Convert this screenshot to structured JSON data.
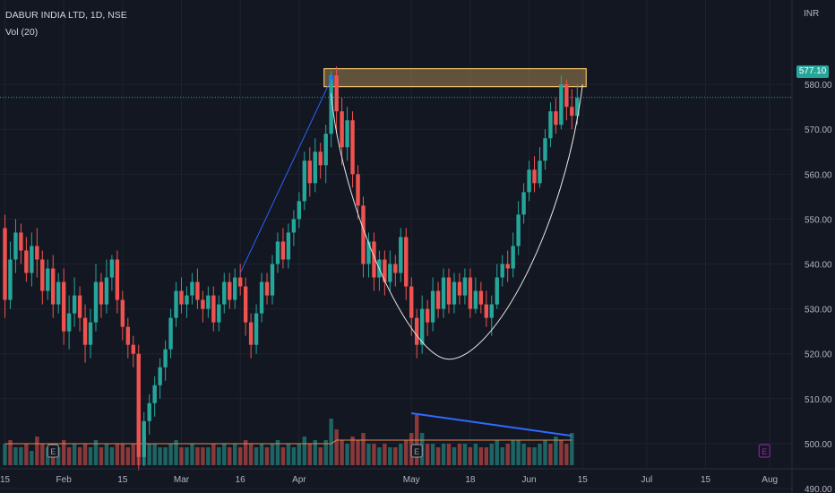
{
  "header": {
    "title": "DABUR INDIA LTD, 1D, NSE",
    "volume_label": "Vol (20)"
  },
  "price_axis": {
    "currency_label": "INR",
    "last_price": "577.10"
  },
  "colors": {
    "background": "#131722",
    "up": "#26a69a",
    "down": "#ef5350",
    "volume_ma": "#e08a4f",
    "trend_arrow": "#2962ff",
    "volume_trendline": "#2f6bff",
    "resistance_zone": "#f2c06b",
    "cup_curve": "#e6e6e6",
    "earnings_marker": "#9c27b0"
  },
  "chart_data": {
    "type": "candlestick",
    "title": "DABUR INDIA LTD, 1D, NSE",
    "ylim": [
      487,
      596
    ],
    "y_ticks": [
      490,
      500,
      510,
      520,
      530,
      540,
      550,
      560,
      570,
      580
    ],
    "x_ticks": [
      {
        "label": "15",
        "i": 0
      },
      {
        "label": "Feb",
        "i": 11
      },
      {
        "label": "15",
        "i": 22
      },
      {
        "label": "Mar",
        "i": 33
      },
      {
        "label": "16",
        "i": 44
      },
      {
        "label": "Apr",
        "i": 55
      },
      {
        "label": "May",
        "i": 76
      },
      {
        "label": "18",
        "i": 87
      },
      {
        "label": "Jun",
        "i": 98
      },
      {
        "label": "15",
        "i": 108
      },
      {
        "label": "Jul",
        "i": 120
      },
      {
        "label": "15",
        "i": 131
      },
      {
        "label": "Aug",
        "i": 143
      }
    ],
    "candles": [
      [
        548,
        532,
        551,
        528
      ],
      [
        532,
        541,
        545,
        530
      ],
      [
        541,
        547,
        550,
        538
      ],
      [
        547,
        543,
        549,
        540
      ],
      [
        543,
        538,
        546,
        536
      ],
      [
        538,
        544,
        547,
        535
      ],
      [
        544,
        541,
        548,
        537
      ],
      [
        541,
        534,
        543,
        531
      ],
      [
        534,
        539,
        541,
        532
      ],
      [
        539,
        531,
        542,
        528
      ],
      [
        531,
        536,
        538,
        529
      ],
      [
        536,
        525,
        539,
        522
      ],
      [
        525,
        529,
        533,
        521
      ],
      [
        529,
        533,
        537,
        526
      ],
      [
        533,
        528,
        535,
        525
      ],
      [
        528,
        522,
        531,
        518
      ],
      [
        522,
        527,
        530,
        519
      ],
      [
        527,
        536,
        540,
        525
      ],
      [
        536,
        531,
        538,
        528
      ],
      [
        531,
        537,
        541,
        529
      ],
      [
        537,
        541,
        542,
        534
      ],
      [
        541,
        532,
        543,
        529
      ],
      [
        532,
        526,
        534,
        523
      ],
      [
        526,
        522,
        528,
        519
      ],
      [
        522,
        520,
        524,
        517
      ],
      [
        520,
        497,
        522,
        494
      ],
      [
        497,
        505,
        507,
        495
      ],
      [
        505,
        509,
        511,
        502
      ],
      [
        509,
        513,
        515,
        506
      ],
      [
        513,
        517,
        519,
        510
      ],
      [
        517,
        521,
        523,
        514
      ],
      [
        521,
        528,
        530,
        519
      ],
      [
        528,
        534,
        536,
        526
      ],
      [
        534,
        531,
        537,
        529
      ],
      [
        531,
        533,
        535,
        528
      ],
      [
        533,
        536,
        538,
        531
      ],
      [
        536,
        532,
        539,
        530
      ],
      [
        532,
        530,
        534,
        527
      ],
      [
        530,
        533,
        535,
        528
      ],
      [
        533,
        527,
        535,
        525
      ],
      [
        527,
        531,
        533,
        525
      ],
      [
        531,
        536,
        538,
        529
      ],
      [
        536,
        532,
        538,
        530
      ],
      [
        532,
        537,
        539,
        530
      ],
      [
        537,
        535,
        540,
        533
      ],
      [
        535,
        527,
        537,
        524
      ],
      [
        527,
        522,
        529,
        519
      ],
      [
        522,
        529,
        531,
        520
      ],
      [
        529,
        536,
        538,
        527
      ],
      [
        536,
        533,
        538,
        531
      ],
      [
        533,
        540,
        542,
        531
      ],
      [
        540,
        545,
        547,
        538
      ],
      [
        545,
        541,
        548,
        539
      ],
      [
        541,
        547,
        549,
        539
      ],
      [
        547,
        550,
        552,
        544
      ],
      [
        550,
        554,
        556,
        548
      ],
      [
        554,
        563,
        565,
        552
      ],
      [
        563,
        558,
        566,
        555
      ],
      [
        558,
        565,
        568,
        556
      ],
      [
        565,
        562,
        567,
        559
      ],
      [
        562,
        569,
        571,
        558
      ],
      [
        569,
        582,
        583,
        566
      ],
      [
        582,
        574,
        584,
        569
      ],
      [
        574,
        566,
        577,
        562
      ],
      [
        566,
        572,
        575,
        563
      ],
      [
        572,
        560,
        574,
        557
      ],
      [
        560,
        553,
        562,
        550
      ],
      [
        553,
        540,
        555,
        537
      ],
      [
        540,
        545,
        547,
        537
      ],
      [
        545,
        537,
        547,
        534
      ],
      [
        537,
        541,
        543,
        534
      ],
      [
        541,
        536,
        543,
        533
      ],
      [
        536,
        540,
        543,
        534
      ],
      [
        540,
        538,
        542,
        535
      ],
      [
        538,
        546,
        548,
        536
      ],
      [
        546,
        535,
        548,
        532
      ],
      [
        535,
        528,
        537,
        524
      ],
      [
        528,
        522,
        530,
        519
      ],
      [
        522,
        530,
        533,
        520
      ],
      [
        530,
        527,
        532,
        524
      ],
      [
        527,
        534,
        537,
        525
      ],
      [
        534,
        530,
        536,
        528
      ],
      [
        530,
        537,
        539,
        528
      ],
      [
        537,
        531,
        539,
        529
      ],
      [
        531,
        536,
        538,
        529
      ],
      [
        536,
        533,
        538,
        531
      ],
      [
        533,
        537,
        539,
        531
      ],
      [
        537,
        530,
        539,
        528
      ],
      [
        530,
        534,
        537,
        529
      ],
      [
        534,
        531,
        536,
        529
      ],
      [
        531,
        528,
        534,
        526
      ],
      [
        528,
        531,
        533,
        524
      ],
      [
        531,
        537,
        540,
        530
      ],
      [
        537,
        540,
        542,
        535
      ],
      [
        540,
        539,
        543,
        536
      ],
      [
        539,
        544,
        547,
        537
      ],
      [
        544,
        551,
        554,
        542
      ],
      [
        551,
        556,
        558,
        549
      ],
      [
        556,
        561,
        563,
        554
      ],
      [
        561,
        558,
        564,
        556
      ],
      [
        558,
        563,
        566,
        557
      ],
      [
        563,
        568,
        570,
        561
      ],
      [
        568,
        574,
        576,
        566
      ],
      [
        574,
        571,
        577,
        569
      ],
      [
        571,
        580,
        582,
        570
      ],
      [
        580,
        575,
        581,
        572
      ],
      [
        575,
        573,
        579,
        570
      ],
      [
        573,
        577,
        580,
        571
      ]
    ],
    "volume": [
      [
        6,
        1
      ],
      [
        7,
        0
      ],
      [
        5,
        1
      ],
      [
        5,
        1
      ],
      [
        6,
        0
      ],
      [
        4,
        1
      ],
      [
        8,
        0
      ],
      [
        6,
        0
      ],
      [
        5,
        1
      ],
      [
        6,
        0
      ],
      [
        5,
        1
      ],
      [
        7,
        0
      ],
      [
        5,
        0
      ],
      [
        6,
        1
      ],
      [
        5,
        0
      ],
      [
        6,
        0
      ],
      [
        5,
        1
      ],
      [
        7,
        1
      ],
      [
        5,
        0
      ],
      [
        6,
        1
      ],
      [
        5,
        1
      ],
      [
        6,
        0
      ],
      [
        6,
        0
      ],
      [
        5,
        0
      ],
      [
        6,
        0
      ],
      [
        16,
        0
      ],
      [
        8,
        1
      ],
      [
        6,
        1
      ],
      [
        6,
        1
      ],
      [
        5,
        1
      ],
      [
        5,
        1
      ],
      [
        6,
        1
      ],
      [
        7,
        1
      ],
      [
        5,
        0
      ],
      [
        5,
        1
      ],
      [
        6,
        1
      ],
      [
        5,
        0
      ],
      [
        5,
        0
      ],
      [
        5,
        1
      ],
      [
        6,
        0
      ],
      [
        5,
        1
      ],
      [
        6,
        1
      ],
      [
        5,
        0
      ],
      [
        6,
        1
      ],
      [
        5,
        0
      ],
      [
        7,
        0
      ],
      [
        6,
        0
      ],
      [
        5,
        1
      ],
      [
        6,
        1
      ],
      [
        5,
        0
      ],
      [
        6,
        1
      ],
      [
        7,
        1
      ],
      [
        5,
        0
      ],
      [
        6,
        1
      ],
      [
        5,
        1
      ],
      [
        6,
        1
      ],
      [
        8,
        1
      ],
      [
        6,
        0
      ],
      [
        7,
        1
      ],
      [
        5,
        0
      ],
      [
        7,
        1
      ],
      [
        13,
        1
      ],
      [
        10,
        0
      ],
      [
        7,
        0
      ],
      [
        6,
        1
      ],
      [
        8,
        0
      ],
      [
        7,
        0
      ],
      [
        9,
        0
      ],
      [
        6,
        1
      ],
      [
        6,
        0
      ],
      [
        5,
        1
      ],
      [
        6,
        0
      ],
      [
        5,
        1
      ],
      [
        5,
        0
      ],
      [
        6,
        1
      ],
      [
        7,
        0
      ],
      [
        9,
        0
      ],
      [
        14,
        0
      ],
      [
        9,
        1
      ],
      [
        6,
        0
      ],
      [
        6,
        1
      ],
      [
        5,
        0
      ],
      [
        6,
        1
      ],
      [
        6,
        0
      ],
      [
        5,
        1
      ],
      [
        6,
        0
      ],
      [
        6,
        1
      ],
      [
        5,
        0
      ],
      [
        6,
        1
      ],
      [
        5,
        0
      ],
      [
        5,
        0
      ],
      [
        6,
        1
      ],
      [
        7,
        1
      ],
      [
        5,
        1
      ],
      [
        6,
        0
      ],
      [
        7,
        1
      ],
      [
        7,
        1
      ],
      [
        6,
        1
      ],
      [
        5,
        0
      ],
      [
        5,
        1
      ],
      [
        6,
        1
      ],
      [
        7,
        1
      ],
      [
        6,
        0
      ],
      [
        8,
        1
      ],
      [
        7,
        0
      ],
      [
        6,
        0
      ],
      [
        9,
        1
      ]
    ],
    "volume_ma": [
      6,
      6,
      6,
      6,
      6,
      6,
      6,
      6,
      6,
      6,
      6,
      6,
      6,
      6,
      6,
      6,
      6,
      6,
      6,
      6,
      6,
      6,
      6,
      6,
      6,
      6,
      6,
      6,
      6,
      6,
      6,
      6,
      6,
      6,
      6,
      6,
      6,
      6,
      6,
      6,
      6,
      6,
      6,
      6,
      6,
      6,
      6,
      6,
      6,
      6,
      6,
      6,
      6,
      6,
      6,
      6,
      6,
      6,
      6,
      6,
      6,
      6,
      7,
      7,
      7,
      7,
      7,
      7,
      7,
      7,
      7,
      7,
      7,
      7,
      7,
      7,
      7,
      7,
      7,
      7,
      7,
      7,
      7,
      7,
      7,
      7,
      7,
      7,
      7,
      7,
      7,
      7,
      7,
      7,
      7,
      7,
      7,
      7,
      7,
      7,
      7,
      7,
      7,
      7,
      7,
      7,
      7
    ],
    "volume_scale_max": 18,
    "last_price": 577.1,
    "annotations": {
      "resistance_zone": {
        "i_start": 60,
        "i_end": 108,
        "y_low": 579.5,
        "y_high": 583.5
      },
      "trend_arrow": {
        "i_start": 44,
        "y_start": 538,
        "i_end": 61,
        "y_end": 582
      },
      "cup_curve": {
        "i_start": 61,
        "y_start": 578,
        "i_mid": 83,
        "y_mid": 518.8,
        "i_end": 108,
        "y_end": 580
      },
      "volume_trendline": {
        "i_start": 76,
        "v_start": 14.5,
        "i_end": 106,
        "v_end": 8.2
      },
      "earnings_markers": [
        {
          "i": 9,
          "label": "E"
        },
        {
          "i": 77,
          "label": "E"
        },
        {
          "i": 142,
          "label": "E"
        }
      ]
    }
  }
}
